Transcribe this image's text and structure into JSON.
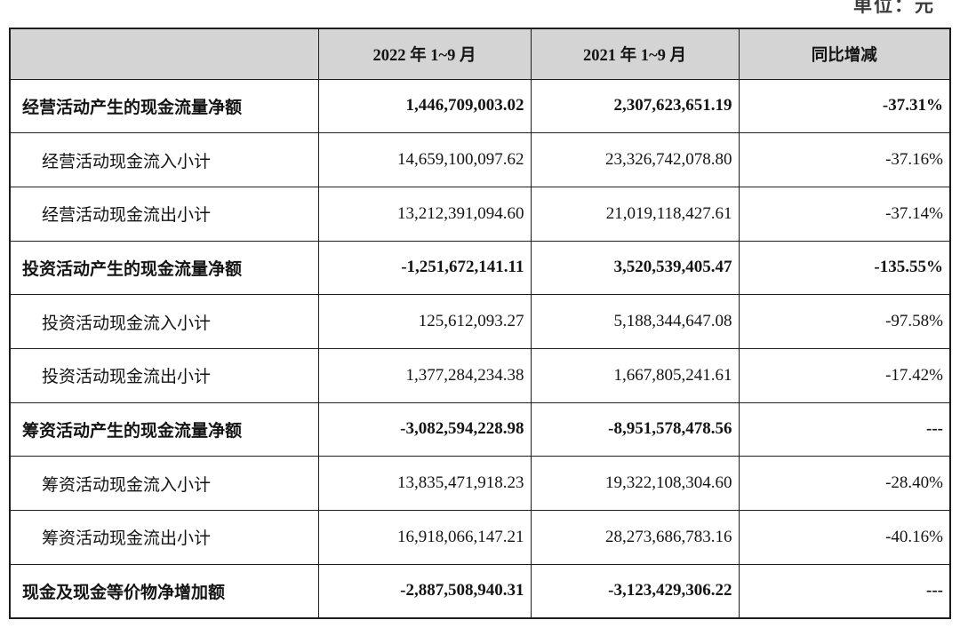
{
  "unit_label": "单位：元",
  "table": {
    "columns": [
      "",
      "2022 年 1~9 月",
      "2021 年 1~9 月",
      "同比增减"
    ],
    "rows": [
      {
        "label": "经营活动产生的现金流量净额",
        "v2022": "1,446,709,003.02",
        "v2021": "2,307,623,651.19",
        "change": "-37.31%",
        "bold": true,
        "indent": false
      },
      {
        "label": "经营活动现金流入小计",
        "v2022": "14,659,100,097.62",
        "v2021": "23,326,742,078.80",
        "change": "-37.16%",
        "bold": false,
        "indent": true
      },
      {
        "label": "经营活动现金流出小计",
        "v2022": "13,212,391,094.60",
        "v2021": "21,019,118,427.61",
        "change": "-37.14%",
        "bold": false,
        "indent": true
      },
      {
        "label": "投资活动产生的现金流量净额",
        "v2022": "-1,251,672,141.11",
        "v2021": "3,520,539,405.47",
        "change": "-135.55%",
        "bold": true,
        "indent": false
      },
      {
        "label": "投资活动现金流入小计",
        "v2022": "125,612,093.27",
        "v2021": "5,188,344,647.08",
        "change": "-97.58%",
        "bold": false,
        "indent": true
      },
      {
        "label": "投资活动现金流出小计",
        "v2022": "1,377,284,234.38",
        "v2021": "1,667,805,241.61",
        "change": "-17.42%",
        "bold": false,
        "indent": true
      },
      {
        "label": "筹资活动产生的现金流量净额",
        "v2022": "-3,082,594,228.98",
        "v2021": "-8,951,578,478.56",
        "change": "---",
        "bold": true,
        "indent": false
      },
      {
        "label": "筹资活动现金流入小计",
        "v2022": "13,835,471,918.23",
        "v2021": "19,322,108,304.60",
        "change": "-28.40%",
        "bold": false,
        "indent": true
      },
      {
        "label": "筹资活动现金流出小计",
        "v2022": "16,918,066,147.21",
        "v2021": "28,273,686,783.16",
        "change": "-40.16%",
        "bold": false,
        "indent": true
      },
      {
        "label": "现金及现金等价物净增加额",
        "v2022": "-2,887,508,940.31",
        "v2021": "-3,123,429,306.22",
        "change": "---",
        "bold": true,
        "indent": false
      }
    ]
  },
  "colors": {
    "header_bg": "#d4d4d4",
    "border": "#1e1e1e",
    "text": "#141414"
  }
}
